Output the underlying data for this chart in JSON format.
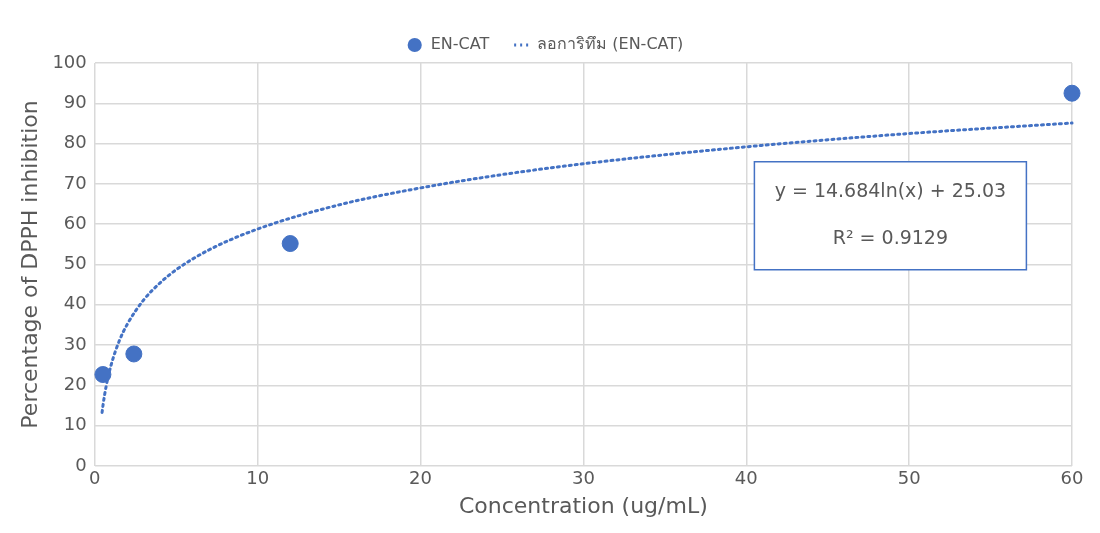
{
  "chart_data": {
    "type": "scatter",
    "xlabel": "Concentration (ug/mL)",
    "ylabel": "Percentage of DPPH inhibition",
    "series": [
      {
        "name": "EN-CAT",
        "type": "scatter",
        "color": "#4472c4",
        "marker": "circle",
        "x": [
          0.5,
          2.4,
          12,
          60
        ],
        "values": [
          22.7,
          27.8,
          55.2,
          92.5
        ]
      },
      {
        "name": "ลอการิทึม (EN-CAT)",
        "type": "line",
        "color": "#4472c4",
        "marker": "none",
        "line_style": "dotted",
        "x": [
          0.45,
          0.5,
          0.7,
          1,
          1.5,
          2,
          3,
          4,
          5,
          7,
          10,
          15,
          20,
          25,
          30,
          40,
          50,
          60
        ],
        "values": [
          13.3,
          14.9,
          19.8,
          25.0,
          31.0,
          35.2,
          41.2,
          45.4,
          48.7,
          53.6,
          58.8,
          64.8,
          69.0,
          72.3,
          75.0,
          79.2,
          82.5,
          85.1
        ]
      }
    ],
    "xlim": [
      0,
      60
    ],
    "xticks": [
      0,
      10,
      20,
      30,
      40,
      50,
      60
    ],
    "ylim": [
      0,
      100
    ],
    "yticks": [
      0,
      10,
      20,
      30,
      40,
      50,
      60,
      70,
      80,
      90,
      100
    ],
    "grid": true,
    "legend": "top",
    "annotations": [
      "y = 14.684ln(x) + 25.03",
      "R² = 0.9129"
    ]
  }
}
